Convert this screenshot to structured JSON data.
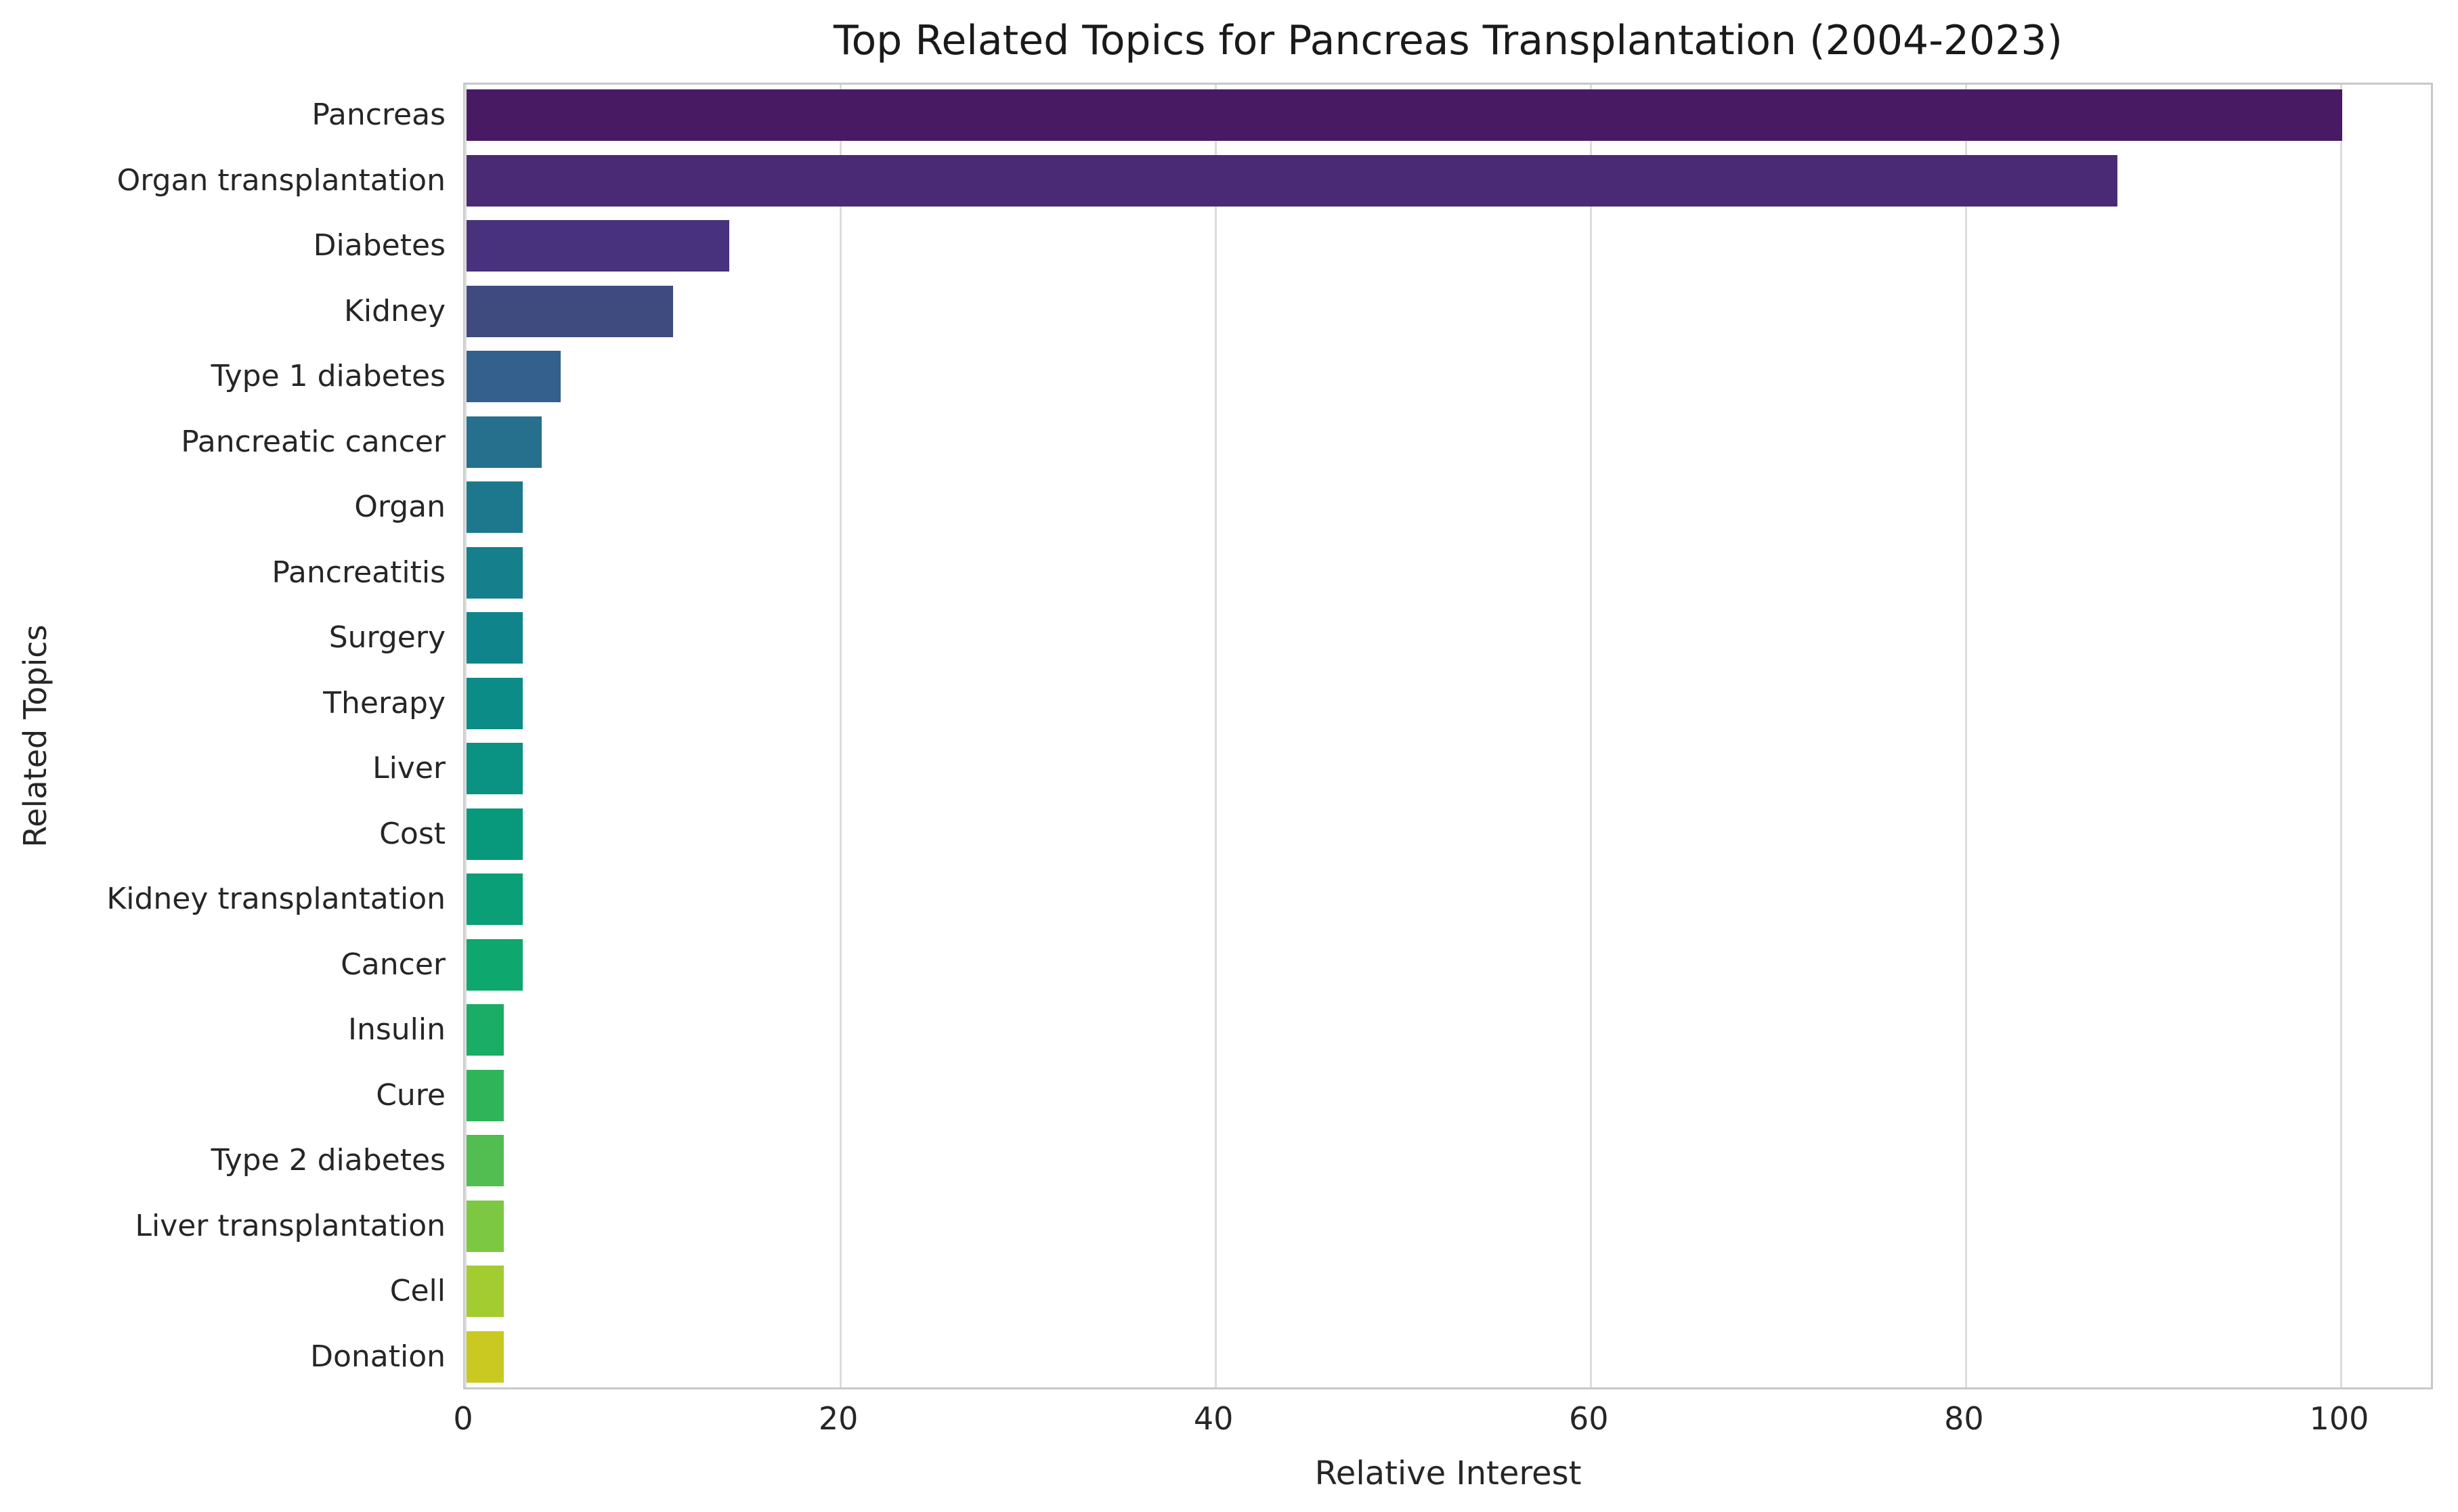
{
  "chart_data": {
    "type": "bar",
    "orientation": "horizontal",
    "title": "Top Related Topics for Pancreas Transplantation (2004-2023)",
    "xlabel": "Relative Interest",
    "ylabel": "Related Topics",
    "categories": [
      "Pancreas",
      "Organ transplantation",
      "Diabetes",
      "Kidney",
      "Type 1 diabetes",
      "Pancreatic cancer",
      "Organ",
      "Pancreatitis",
      "Surgery",
      "Therapy",
      "Liver",
      "Cost",
      "Kidney transplantation",
      "Cancer",
      "Insulin",
      "Cure",
      "Type 2 diabetes",
      "Liver transplantation",
      "Cell",
      "Donation"
    ],
    "values": [
      100,
      88,
      14,
      11,
      5,
      4,
      3,
      3,
      3,
      3,
      3,
      3,
      3,
      3,
      2,
      2,
      2,
      2,
      2,
      2
    ],
    "bar_colors": [
      "#481a63",
      "#4a2a74",
      "#48327e",
      "#3f4a7f",
      "#33608c",
      "#27708d",
      "#1d788d",
      "#157f8c",
      "#0f858b",
      "#0c8c87",
      "#0a9283",
      "#08997d",
      "#0a9f76",
      "#0ea76e",
      "#19ad65",
      "#2fb45a",
      "#52bd50",
      "#7cc843",
      "#a3cc31",
      "#c9c922"
    ],
    "xticks": [
      0,
      20,
      40,
      60,
      80,
      100
    ],
    "xlim": [
      0,
      105
    ],
    "grid": "vertical",
    "legend": "none",
    "colors": {
      "background": "#ffffff",
      "spine": "#c8c8c8",
      "gridline": "#dcdcdc",
      "text": "#262626",
      "title_text": "#1a1a1a"
    }
  }
}
